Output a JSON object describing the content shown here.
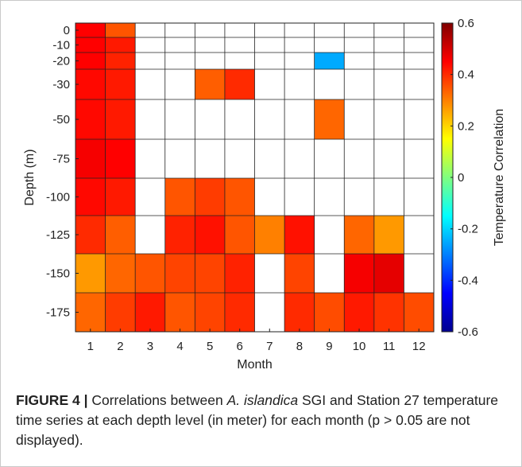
{
  "chart_data": {
    "type": "heatmap",
    "xlabel": "Month",
    "ylabel": "Depth (m)",
    "colorbar_label": "Temperature Correlation",
    "x_categories": [
      "1",
      "2",
      "3",
      "4",
      "5",
      "6",
      "7",
      "8",
      "9",
      "10",
      "11",
      "12"
    ],
    "depth_levels": [
      0,
      -10,
      -20,
      -30,
      -50,
      -75,
      -100,
      -125,
      -150,
      -175
    ],
    "y_ticks": [
      "0",
      "-10",
      "-20",
      "-30",
      "-50",
      "-75",
      "-100",
      "-125",
      "-150",
      "-175"
    ],
    "color_range": [
      -0.6,
      0.6
    ],
    "colorbar_ticks": [
      "0.6",
      "0.4",
      "0.2",
      "0",
      "-0.2",
      "-0.4",
      "-0.6"
    ],
    "colorbar_tick_values": [
      0.6,
      0.4,
      0.2,
      0,
      -0.2,
      -0.4,
      -0.6
    ],
    "colormap": "jet",
    "values": [
      [
        0.45,
        0.35,
        null,
        null,
        null,
        null,
        null,
        null,
        null,
        null,
        null,
        null
      ],
      [
        0.45,
        0.42,
        null,
        null,
        null,
        null,
        null,
        null,
        null,
        null,
        null,
        null
      ],
      [
        0.45,
        0.41,
        null,
        null,
        null,
        null,
        null,
        null,
        -0.25,
        null,
        null,
        null
      ],
      [
        0.44,
        0.42,
        null,
        null,
        0.34,
        0.4,
        null,
        null,
        null,
        null,
        null,
        null
      ],
      [
        0.44,
        0.42,
        null,
        null,
        null,
        null,
        null,
        null,
        0.33,
        null,
        null,
        null
      ],
      [
        0.46,
        0.45,
        null,
        null,
        null,
        null,
        null,
        null,
        null,
        null,
        null,
        null
      ],
      [
        0.44,
        0.42,
        null,
        0.35,
        0.38,
        0.35,
        null,
        null,
        null,
        null,
        null,
        null
      ],
      [
        0.4,
        0.34,
        null,
        0.41,
        0.43,
        0.35,
        0.3,
        0.43,
        null,
        0.33,
        0.27,
        null
      ],
      [
        0.27,
        0.33,
        0.35,
        0.37,
        0.37,
        0.41,
        null,
        0.37,
        null,
        0.46,
        0.48,
        null
      ],
      [
        0.33,
        0.38,
        0.42,
        0.35,
        0.37,
        0.4,
        null,
        0.4,
        0.36,
        0.42,
        0.39,
        0.36
      ]
    ],
    "grid": true
  },
  "caption": {
    "label": "FIGURE 4 |",
    "text_before": " Correlations between ",
    "species": "A. islandica",
    "text_after": " SGI and Station 27 temperature time series at each depth level (in meter) for each month",
    "note": "(p > 0.05 are not displayed)."
  }
}
